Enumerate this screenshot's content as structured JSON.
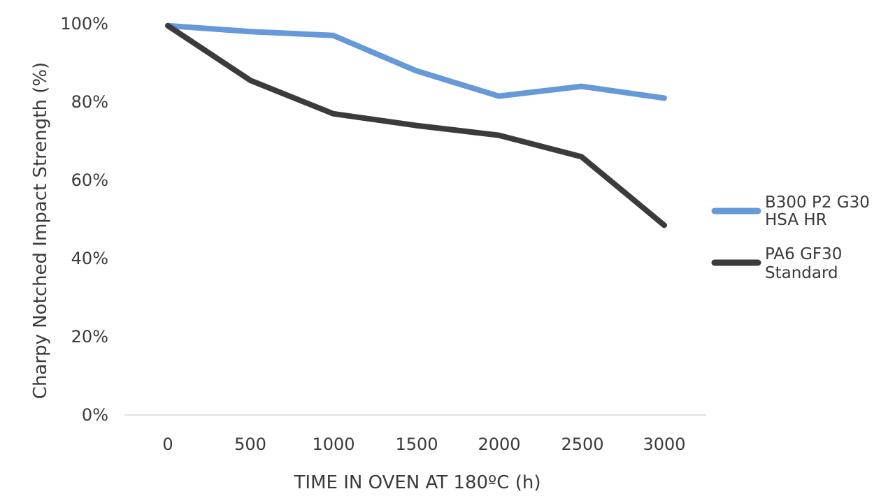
{
  "chart_data": {
    "type": "line",
    "title": "",
    "xlabel": "TIME IN OVEN AT 180ºC (h)",
    "ylabel": "Charpy Notched Impact Strength (%)",
    "x": [
      0,
      500,
      1000,
      1500,
      2000,
      2500,
      3000
    ],
    "xtick_labels": [
      "0",
      "500",
      "1000",
      "1500",
      "2000",
      "2500",
      "3000"
    ],
    "ytick_labels": [
      "0%",
      "20%",
      "40%",
      "60%",
      "80%",
      "100%"
    ],
    "yticks": [
      0,
      20,
      40,
      60,
      80,
      100
    ],
    "ylim": [
      0,
      100
    ],
    "grid": false,
    "legend_position": "right",
    "series": [
      {
        "name": "B300 P2 G30 HSA HR",
        "legend_lines": [
          "B300 P2 G30",
          "HSA HR"
        ],
        "color": "#6699d8",
        "values": [
          99.5,
          98,
          97,
          88,
          81.5,
          84,
          81
        ]
      },
      {
        "name": "PA6 GF30 Standard",
        "legend_lines": [
          "PA6 GF30",
          "Standard"
        ],
        "color": "#3a3b3d",
        "values": [
          99.5,
          85.5,
          77,
          74,
          71.5,
          66,
          48.5
        ]
      }
    ]
  }
}
